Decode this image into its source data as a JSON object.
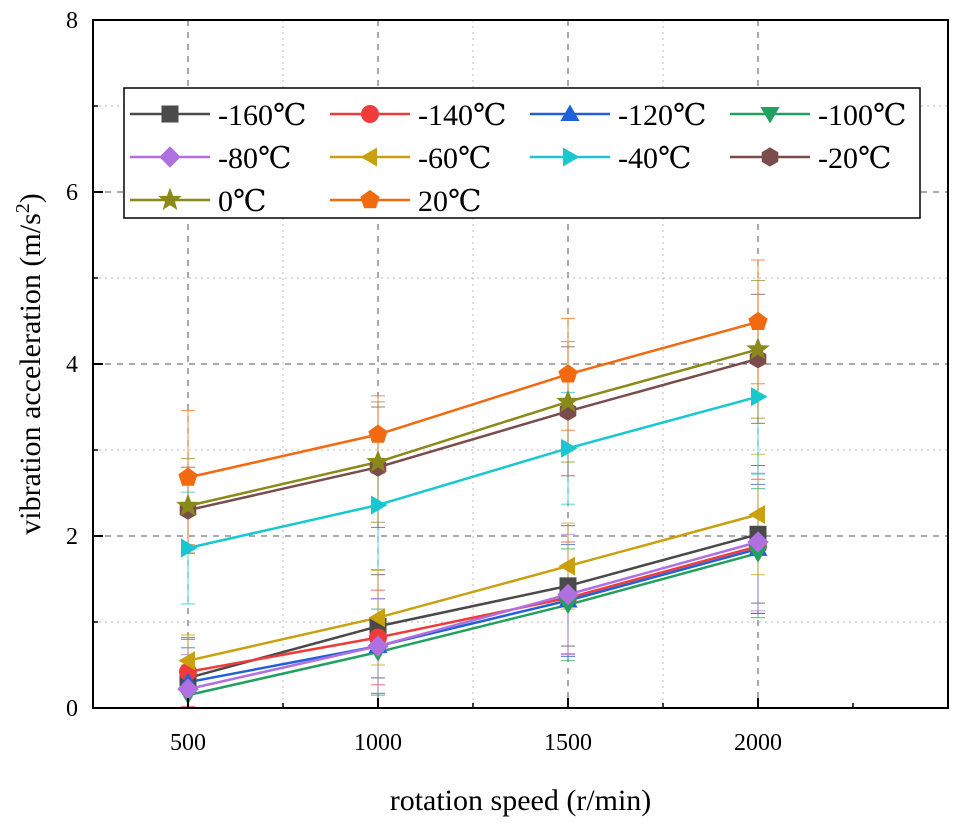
{
  "chart_data": {
    "type": "line",
    "xlabel": "rotation speed (r/min)",
    "ylabel": "vibration acceleration (m/s²)",
    "ylabel_main": "vibration acceleration (m/s",
    "ylabel_sup": "2",
    "ylabel_end": ")",
    "x": [
      500,
      1000,
      1500,
      2000
    ],
    "xlim": [
      250,
      2500
    ],
    "ylim": [
      0,
      8
    ],
    "xticks": [
      500,
      1000,
      1500,
      2000
    ],
    "xtick_labels": [
      "500",
      "1000",
      "1500",
      "2000"
    ],
    "yticks": [
      0,
      2,
      4,
      6,
      8
    ],
    "ytick_labels": [
      "0",
      "2",
      "4",
      "6",
      "8"
    ],
    "grid": true,
    "legend_position": "top",
    "series": [
      {
        "name": "-160℃",
        "color": "#4a4a4a",
        "marker": "square",
        "values": [
          0.35,
          0.95,
          1.42,
          2.02
        ],
        "err": [
          0.45,
          0.6,
          0.7,
          0.8
        ]
      },
      {
        "name": "-140℃",
        "color": "#ef3b3b",
        "marker": "circle",
        "values": [
          0.42,
          0.82,
          1.28,
          1.88
        ],
        "err": [
          0.4,
          0.55,
          0.65,
          0.78
        ]
      },
      {
        "name": "-120℃",
        "color": "#2060d8",
        "marker": "triangle-up",
        "values": [
          0.3,
          0.72,
          1.25,
          1.85
        ],
        "err": [
          0.4,
          0.55,
          0.65,
          0.75
        ]
      },
      {
        "name": "-100℃",
        "color": "#22a060",
        "marker": "triangle-down",
        "values": [
          0.15,
          0.65,
          1.2,
          1.8
        ],
        "err": [
          0.35,
          0.5,
          0.65,
          0.75
        ]
      },
      {
        "name": "-80℃",
        "color": "#b070e0",
        "marker": "diamond",
        "values": [
          0.22,
          0.72,
          1.32,
          1.93
        ],
        "err": [
          0.4,
          0.55,
          0.7,
          0.8
        ]
      },
      {
        "name": "-60℃",
        "color": "#c8a010",
        "marker": "triangle-left",
        "values": [
          0.55,
          1.05,
          1.65,
          2.25
        ],
        "err": [
          0.3,
          0.55,
          0.5,
          0.7
        ]
      },
      {
        "name": "-40℃",
        "color": "#18c8d0",
        "marker": "triangle-right",
        "values": [
          1.86,
          2.36,
          3.02,
          3.62
        ],
        "err": [
          0.65,
          0.75,
          0.65,
          0.9
        ]
      },
      {
        "name": "-20℃",
        "color": "#7a4c4c",
        "marker": "hexagon",
        "values": [
          2.3,
          2.8,
          3.45,
          4.06
        ],
        "err": [
          0.5,
          0.7,
          0.75,
          0.75
        ]
      },
      {
        "name": "0℃",
        "color": "#8a8a1a",
        "marker": "star",
        "values": [
          2.35,
          2.86,
          3.56,
          4.17
        ],
        "err": [
          0.55,
          0.7,
          0.7,
          0.8
        ]
      },
      {
        "name": "20℃",
        "color": "#f26a10",
        "marker": "pentagon",
        "values": [
          2.68,
          3.18,
          3.88,
          4.49
        ],
        "err": [
          0.78,
          0.45,
          0.65,
          0.72
        ]
      }
    ]
  }
}
